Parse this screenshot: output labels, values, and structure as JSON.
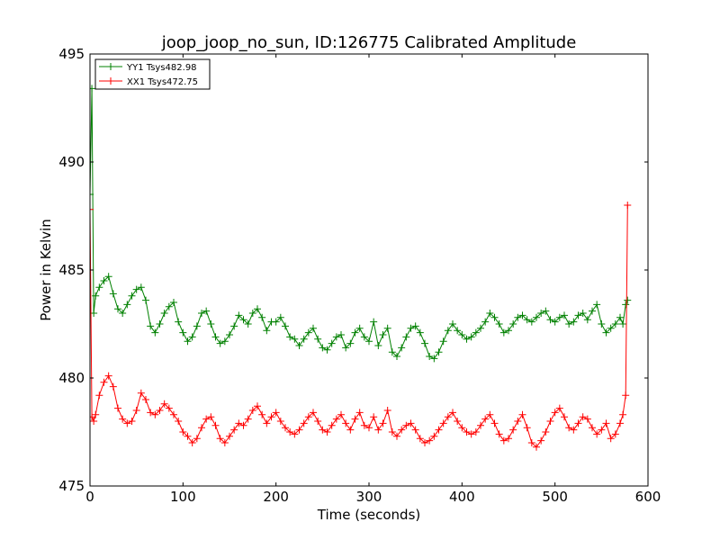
{
  "chart_data": {
    "type": "line",
    "title": "joop_joop_no_sun, ID:126775 Calibrated Amplitude",
    "xlabel": "Time (seconds)",
    "ylabel": "Power in Kelvin",
    "xlim": [
      0,
      600
    ],
    "ylim": [
      475,
      495
    ],
    "xticks": [
      0,
      100,
      200,
      300,
      400,
      500,
      600
    ],
    "yticks": [
      475,
      480,
      485,
      490,
      495
    ],
    "grid": false,
    "legend_position": "top-left",
    "marker": "+",
    "series": [
      {
        "name": "YY1 Tsys482.98",
        "color": "#008000",
        "x": [
          0,
          2,
          4,
          6,
          10,
          15,
          20,
          25,
          30,
          35,
          40,
          45,
          50,
          55,
          60,
          65,
          70,
          75,
          80,
          85,
          90,
          95,
          100,
          105,
          110,
          115,
          120,
          125,
          130,
          135,
          140,
          145,
          150,
          155,
          160,
          165,
          170,
          175,
          180,
          185,
          190,
          195,
          200,
          205,
          210,
          215,
          220,
          225,
          230,
          235,
          240,
          245,
          250,
          255,
          260,
          265,
          270,
          275,
          280,
          285,
          290,
          295,
          300,
          305,
          310,
          315,
          320,
          325,
          330,
          335,
          340,
          345,
          350,
          355,
          360,
          365,
          370,
          375,
          380,
          385,
          390,
          395,
          400,
          405,
          410,
          415,
          420,
          425,
          430,
          435,
          440,
          445,
          450,
          455,
          460,
          465,
          470,
          475,
          480,
          485,
          490,
          495,
          500,
          505,
          510,
          515,
          520,
          525,
          530,
          535,
          540,
          545,
          550,
          555,
          560,
          565,
          570,
          573,
          576,
          578
        ],
        "y": [
          488.5,
          493.4,
          483.0,
          483.8,
          484.2,
          484.5,
          484.7,
          483.9,
          483.2,
          483.0,
          483.4,
          483.8,
          484.1,
          484.2,
          483.6,
          482.4,
          482.1,
          482.5,
          483.0,
          483.3,
          483.5,
          482.6,
          482.1,
          481.7,
          481.9,
          482.4,
          483.0,
          483.1,
          482.5,
          481.9,
          481.6,
          481.7,
          482.0,
          482.4,
          482.9,
          482.7,
          482.5,
          483.0,
          483.2,
          482.8,
          482.2,
          482.6,
          482.6,
          482.8,
          482.4,
          481.9,
          481.8,
          481.5,
          481.8,
          482.1,
          482.3,
          481.8,
          481.4,
          481.3,
          481.6,
          481.9,
          482.0,
          481.4,
          481.6,
          482.1,
          482.3,
          481.9,
          481.7,
          482.6,
          481.5,
          482.0,
          482.3,
          481.2,
          481.0,
          481.4,
          481.9,
          482.3,
          482.4,
          482.1,
          481.6,
          481.0,
          480.9,
          481.2,
          481.7,
          482.2,
          482.5,
          482.2,
          482.0,
          481.8,
          481.9,
          482.1,
          482.3,
          482.6,
          483.0,
          482.8,
          482.5,
          482.1,
          482.2,
          482.5,
          482.8,
          482.9,
          482.7,
          482.6,
          482.8,
          483.0,
          483.1,
          482.7,
          482.6,
          482.8,
          482.9,
          482.5,
          482.6,
          482.9,
          483.0,
          482.7,
          483.1,
          483.4,
          482.5,
          482.1,
          482.3,
          482.5,
          482.8,
          482.5,
          483.4,
          483.6
        ]
      },
      {
        "name": "XX1 Tsys472.75",
        "color": "#ff0000",
        "x": [
          0,
          2,
          4,
          6,
          10,
          15,
          20,
          25,
          30,
          35,
          40,
          45,
          50,
          55,
          60,
          65,
          70,
          75,
          80,
          85,
          90,
          95,
          100,
          105,
          110,
          115,
          120,
          125,
          130,
          135,
          140,
          145,
          150,
          155,
          160,
          165,
          170,
          175,
          180,
          185,
          190,
          195,
          200,
          205,
          210,
          215,
          220,
          225,
          230,
          235,
          240,
          245,
          250,
          255,
          260,
          265,
          270,
          275,
          280,
          285,
          290,
          295,
          300,
          305,
          310,
          315,
          320,
          325,
          330,
          335,
          340,
          345,
          350,
          355,
          360,
          365,
          370,
          375,
          380,
          385,
          390,
          395,
          400,
          405,
          410,
          415,
          420,
          425,
          430,
          435,
          440,
          445,
          450,
          455,
          460,
          465,
          470,
          475,
          480,
          485,
          490,
          495,
          500,
          505,
          510,
          515,
          520,
          525,
          530,
          535,
          540,
          545,
          550,
          555,
          560,
          565,
          570,
          573,
          576,
          578
        ],
        "y": [
          487.8,
          478.2,
          478.0,
          478.3,
          479.2,
          479.8,
          480.1,
          479.6,
          478.6,
          478.1,
          477.9,
          478.0,
          478.5,
          479.3,
          479.0,
          478.4,
          478.3,
          478.5,
          478.8,
          478.6,
          478.3,
          478.0,
          477.5,
          477.3,
          477.0,
          477.2,
          477.7,
          478.1,
          478.2,
          477.8,
          477.2,
          477.0,
          477.3,
          477.6,
          477.9,
          477.8,
          478.1,
          478.5,
          478.7,
          478.3,
          477.9,
          478.2,
          478.4,
          478.0,
          477.7,
          477.5,
          477.4,
          477.6,
          477.9,
          478.2,
          478.4,
          478.0,
          477.6,
          477.5,
          477.8,
          478.1,
          478.3,
          477.9,
          477.6,
          478.1,
          478.4,
          477.8,
          477.7,
          478.2,
          477.6,
          477.9,
          478.5,
          477.5,
          477.3,
          477.6,
          477.8,
          477.9,
          477.6,
          477.2,
          477.0,
          477.1,
          477.3,
          477.6,
          477.9,
          478.2,
          478.4,
          478.0,
          477.7,
          477.5,
          477.4,
          477.5,
          477.8,
          478.1,
          478.3,
          477.9,
          477.4,
          477.1,
          477.2,
          477.6,
          478.0,
          478.3,
          477.7,
          477.0,
          476.8,
          477.1,
          477.5,
          478.0,
          478.4,
          478.6,
          478.2,
          477.7,
          477.6,
          477.9,
          478.2,
          478.1,
          477.7,
          477.4,
          477.6,
          477.9,
          477.2,
          477.4,
          477.9,
          478.3,
          479.2,
          488.0
        ]
      }
    ]
  }
}
